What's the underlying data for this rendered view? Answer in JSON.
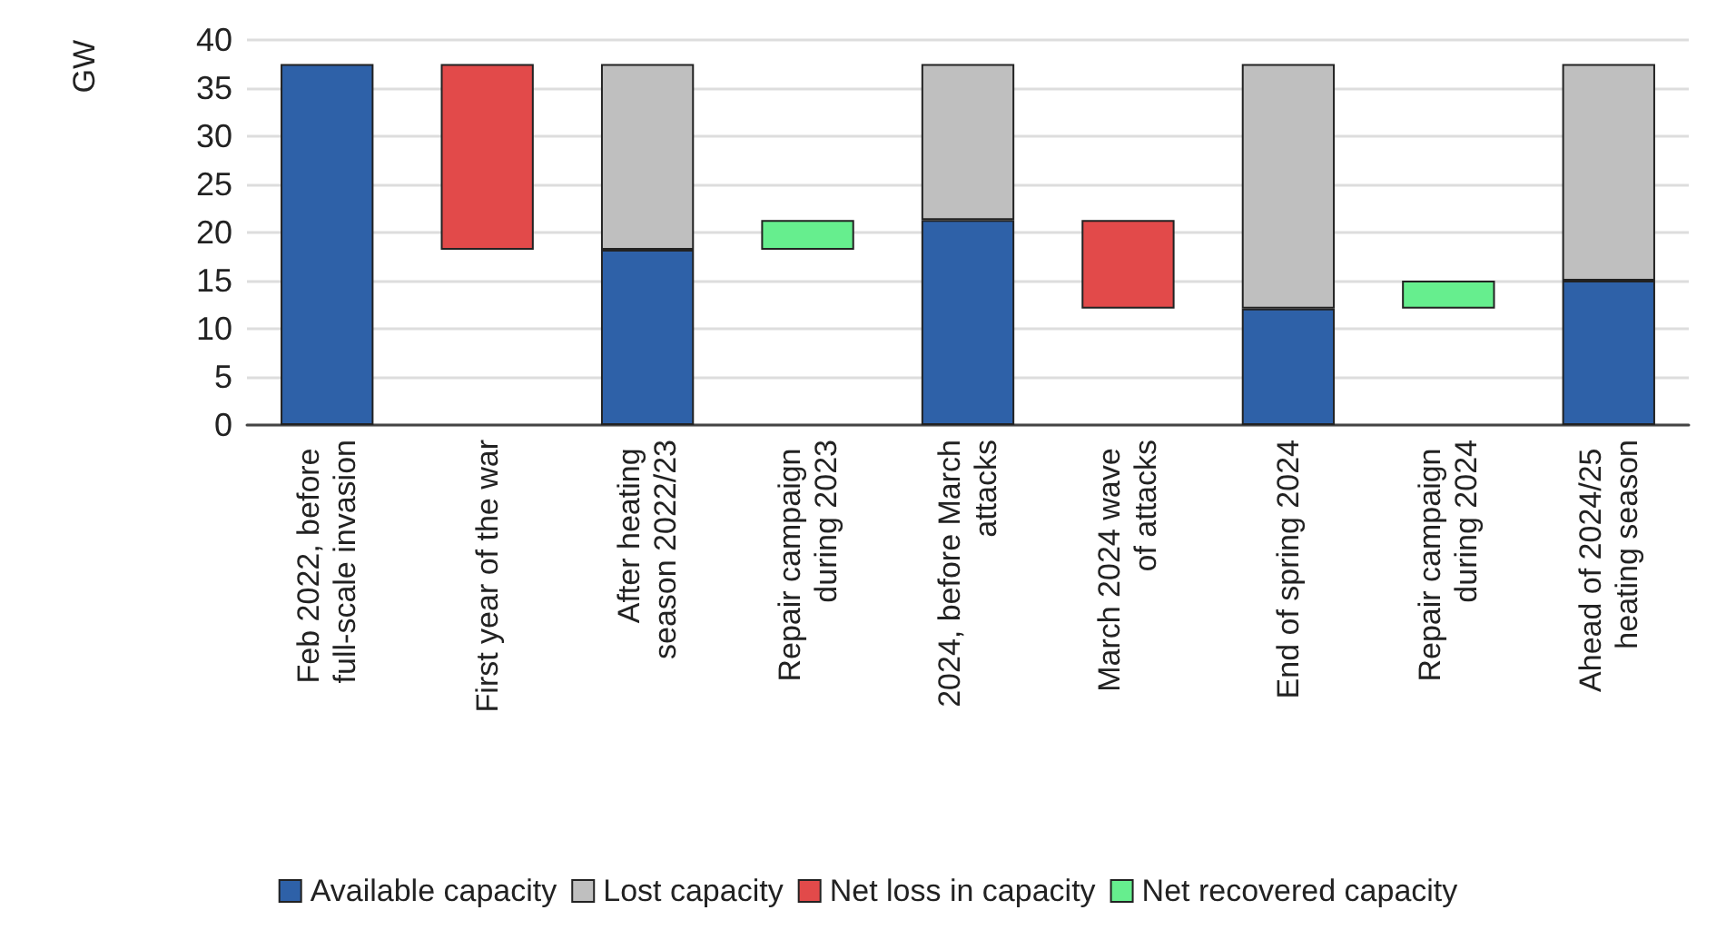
{
  "chart_data": {
    "type": "bar",
    "stacked": true,
    "ylabel": "GW",
    "categories": [
      "Feb 2022, before full-scale invasion",
      "First year of the war",
      "After heating season 2022/23",
      "Repair campaign during 2023",
      "2024, before March attacks",
      "March 2024 wave of attacks",
      "End of spring 2024",
      "Repair campaign during 2024",
      "Ahead of 2024/25 heating season"
    ],
    "series": [
      {
        "name": "Available capacity",
        "color": "#2e61a8",
        "values": [
          37.5,
          null,
          18.2,
          null,
          21.3,
          null,
          12.1,
          null,
          15.0
        ]
      },
      {
        "name": "Lost capacity",
        "color": "#bfbfbf",
        "values": [
          null,
          null,
          19.3,
          null,
          16.2,
          null,
          25.4,
          null,
          22.5
        ]
      },
      {
        "name": "Net loss in capacity",
        "color": "#e24a4a",
        "values": [
          null,
          19.3,
          null,
          null,
          null,
          9.2,
          null,
          null,
          null
        ],
        "base": [
          null,
          18.2,
          null,
          null,
          null,
          12.1,
          null,
          null,
          null
        ]
      },
      {
        "name": "Net recovered capacity",
        "color": "#66ee8e",
        "values": [
          null,
          null,
          null,
          3.1,
          null,
          null,
          null,
          2.9,
          null
        ],
        "base": [
          null,
          null,
          null,
          18.2,
          null,
          null,
          null,
          12.1,
          null
        ]
      }
    ],
    "ylim": [
      0,
      40
    ],
    "yticks": [
      0,
      5,
      10,
      15,
      20,
      25,
      30,
      35,
      40
    ],
    "grid": "y",
    "legend": "bottom"
  }
}
